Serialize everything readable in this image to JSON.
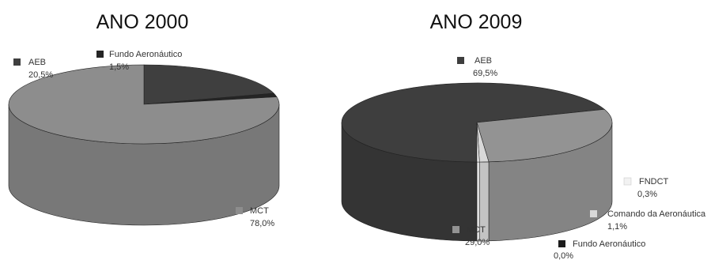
{
  "chart_data": [
    {
      "type": "pie",
      "title": "ANO 2000",
      "slices": [
        {
          "label": "AEB",
          "value": 20.5,
          "display": "20,5%",
          "color": "#3f3f3f",
          "side": "#2f2f2f"
        },
        {
          "label": "Fundo Aeronáutico",
          "value": 1.5,
          "display": "1,5%",
          "color": "#252525",
          "side": "#1c1c1c"
        },
        {
          "label": "MCT",
          "value": 78.0,
          "display": "78,0%",
          "color": "#8d8d8d",
          "side": "#787878"
        }
      ]
    },
    {
      "type": "pie",
      "title": "ANO 2009",
      "slices": [
        {
          "label": "AEB",
          "value": 69.5,
          "display": "69,5%",
          "color": "#3e3e3e",
          "side": "#343434"
        },
        {
          "label": "MCT",
          "value": 29.0,
          "display": "29,0%",
          "color": "#939393",
          "side": "#848484"
        },
        {
          "label": "Fundo Aeronáutico",
          "value": 0.0,
          "display": "0,0%",
          "color": "#1c1c1c",
          "side": "#1c1c1c"
        },
        {
          "label": "Comando da Aeronáutica",
          "value": 1.1,
          "display": "1,1%",
          "color": "#d8d8d8",
          "side": "#c4c4c4"
        },
        {
          "label": "FNDCT",
          "value": 0.3,
          "display": "0,3%",
          "color": "#f2f2f2",
          "side": "#e6e6e6"
        }
      ]
    }
  ]
}
